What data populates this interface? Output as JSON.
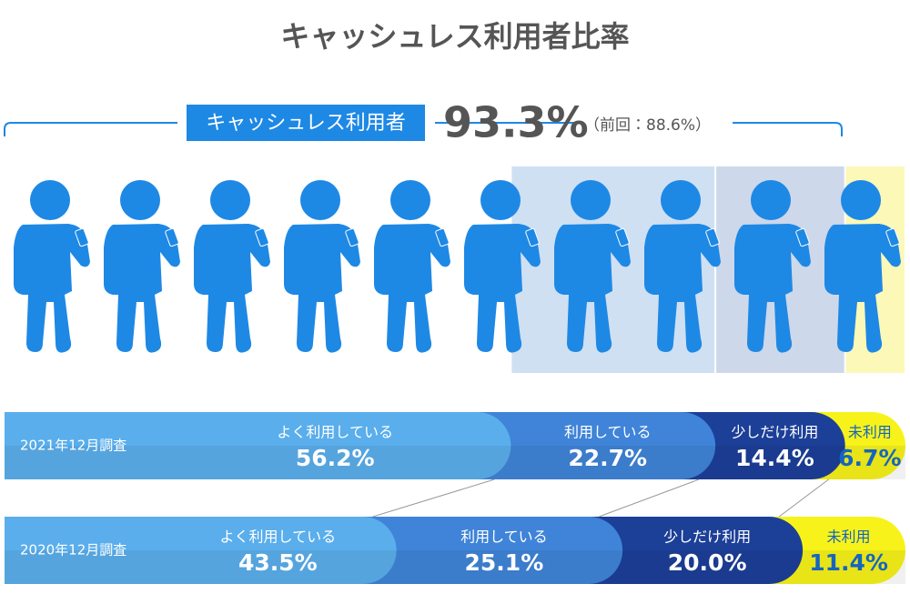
{
  "title": "キャッシュレス利用者比率",
  "summary": {
    "label": "キャッシュレス利用者",
    "value_label": "93.3%",
    "previous": "（前回：88.6%）"
  },
  "chart_data": {
    "type": "stacked-bar",
    "categories": [
      "2021年12月調査",
      "2020年12月調査"
    ],
    "series": [
      {
        "name": "よく利用している",
        "color": "#5aaeec",
        "values": [
          56.2,
          43.5
        ],
        "value_labels": [
          "56.2%",
          "43.5%"
        ]
      },
      {
        "name": "利用している",
        "color": "#3f84d8",
        "values": [
          22.7,
          25.1
        ],
        "value_labels": [
          "22.7%",
          "25.1%"
        ]
      },
      {
        "name": "少しだけ利用",
        "color": "#1c3f98",
        "values": [
          14.4,
          20.0
        ],
        "value_labels": [
          "14.4%",
          "20.0%"
        ]
      },
      {
        "name": "未利用",
        "color": "#f7f31a",
        "values": [
          6.7,
          11.4
        ],
        "value_labels": [
          "6.7%",
          "11.4%"
        ]
      }
    ]
  }
}
